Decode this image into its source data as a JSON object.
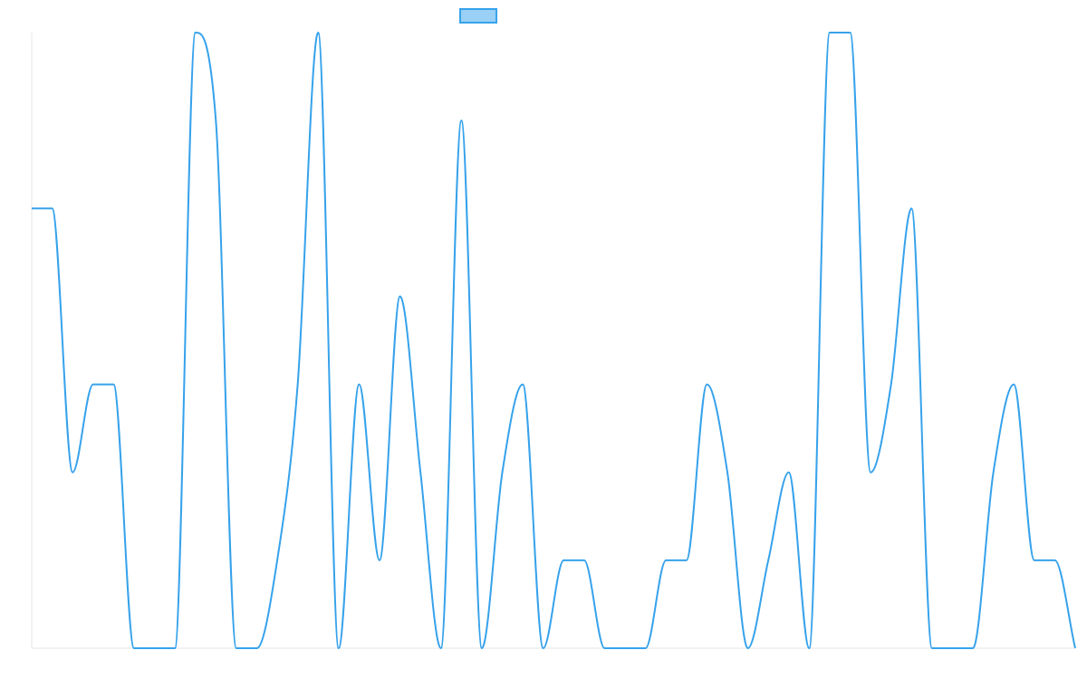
{
  "chart_data": {
    "type": "line",
    "categories": [
      null,
      null,
      null,
      null,
      null,
      null,
      null,
      null,
      null,
      null,
      null,
      null,
      null,
      null,
      null,
      null,
      null,
      null,
      null,
      null,
      null,
      null,
      null,
      null,
      null,
      null,
      null,
      null,
      null,
      null,
      null,
      null,
      null,
      null,
      null,
      null,
      null,
      null,
      null,
      null,
      null,
      null,
      null,
      null,
      null,
      null,
      null,
      null,
      null,
      null,
      null,
      null
    ],
    "series": [
      {
        "color": "#36a2eb",
        "fill": "#9ad0f5",
        "values": [
          5,
          5,
          2,
          3,
          3,
          0,
          0,
          0,
          7,
          6,
          0,
          0,
          1,
          3,
          7,
          0,
          3,
          1,
          4,
          2,
          0,
          6,
          0,
          2,
          3,
          0,
          1,
          1,
          0,
          0,
          0,
          1,
          1,
          3,
          2,
          0,
          1,
          2,
          0,
          7,
          7,
          2,
          3,
          5,
          0,
          0,
          0,
          2,
          3,
          1,
          1,
          0
        ]
      }
    ],
    "ylim": [
      0,
      7
    ],
    "legend": "top"
  }
}
